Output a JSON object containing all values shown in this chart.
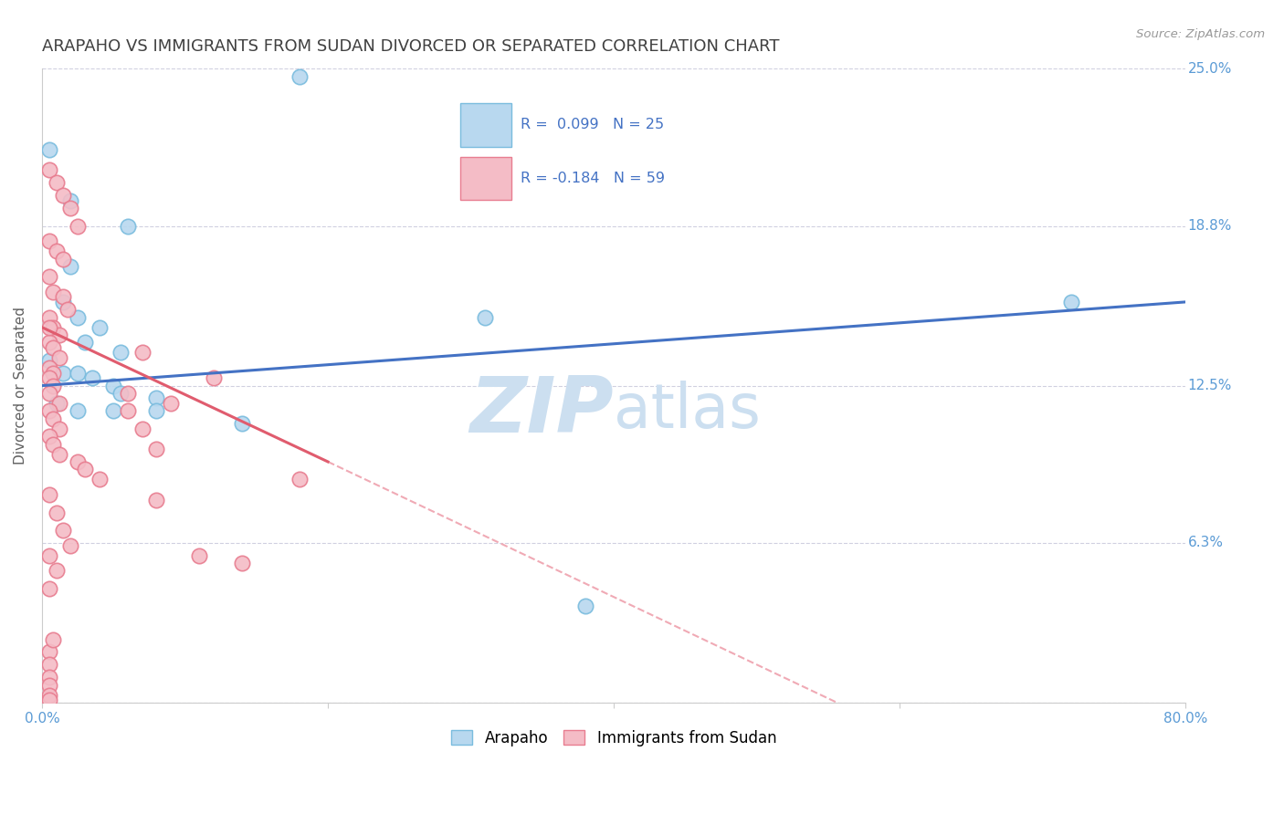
{
  "title": "ARAPAHO VS IMMIGRANTS FROM SUDAN DIVORCED OR SEPARATED CORRELATION CHART",
  "source_text": "Source: ZipAtlas.com",
  "ylabel": "Divorced or Separated",
  "xlim": [
    0.0,
    0.8
  ],
  "ylim": [
    0.0,
    0.25
  ],
  "xtick_positions": [
    0.0,
    0.2,
    0.4,
    0.6,
    0.8
  ],
  "xticklabels": [
    "0.0%",
    "",
    "",
    "",
    "80.0%"
  ],
  "ytick_right_labels": [
    "25.0%",
    "18.8%",
    "12.5%",
    "6.3%"
  ],
  "ytick_right_values": [
    0.25,
    0.188,
    0.125,
    0.063
  ],
  "watermark_zip": "ZIP",
  "watermark_atlas": "atlas",
  "blue_scatter": [
    [
      0.005,
      0.218
    ],
    [
      0.18,
      0.247
    ],
    [
      0.02,
      0.198
    ],
    [
      0.06,
      0.188
    ],
    [
      0.02,
      0.172
    ],
    [
      0.015,
      0.158
    ],
    [
      0.025,
      0.152
    ],
    [
      0.04,
      0.148
    ],
    [
      0.03,
      0.142
    ],
    [
      0.055,
      0.138
    ],
    [
      0.005,
      0.135
    ],
    [
      0.015,
      0.13
    ],
    [
      0.025,
      0.13
    ],
    [
      0.035,
      0.128
    ],
    [
      0.05,
      0.125
    ],
    [
      0.055,
      0.122
    ],
    [
      0.08,
      0.12
    ],
    [
      0.01,
      0.118
    ],
    [
      0.025,
      0.115
    ],
    [
      0.05,
      0.115
    ],
    [
      0.08,
      0.115
    ],
    [
      0.14,
      0.11
    ],
    [
      0.31,
      0.152
    ],
    [
      0.72,
      0.158
    ],
    [
      0.38,
      0.038
    ]
  ],
  "pink_scatter": [
    [
      0.005,
      0.21
    ],
    [
      0.01,
      0.205
    ],
    [
      0.015,
      0.2
    ],
    [
      0.02,
      0.195
    ],
    [
      0.025,
      0.188
    ],
    [
      0.005,
      0.182
    ],
    [
      0.01,
      0.178
    ],
    [
      0.015,
      0.175
    ],
    [
      0.005,
      0.168
    ],
    [
      0.008,
      0.162
    ],
    [
      0.015,
      0.16
    ],
    [
      0.018,
      0.155
    ],
    [
      0.005,
      0.152
    ],
    [
      0.008,
      0.148
    ],
    [
      0.012,
      0.145
    ],
    [
      0.005,
      0.142
    ],
    [
      0.008,
      0.14
    ],
    [
      0.012,
      0.136
    ],
    [
      0.005,
      0.132
    ],
    [
      0.008,
      0.13
    ],
    [
      0.005,
      0.128
    ],
    [
      0.008,
      0.125
    ],
    [
      0.005,
      0.122
    ],
    [
      0.012,
      0.118
    ],
    [
      0.005,
      0.115
    ],
    [
      0.008,
      0.112
    ],
    [
      0.012,
      0.108
    ],
    [
      0.005,
      0.105
    ],
    [
      0.008,
      0.102
    ],
    [
      0.012,
      0.098
    ],
    [
      0.025,
      0.095
    ],
    [
      0.03,
      0.092
    ],
    [
      0.04,
      0.088
    ],
    [
      0.005,
      0.082
    ],
    [
      0.01,
      0.075
    ],
    [
      0.015,
      0.068
    ],
    [
      0.02,
      0.062
    ],
    [
      0.005,
      0.058
    ],
    [
      0.01,
      0.052
    ],
    [
      0.005,
      0.045
    ],
    [
      0.14,
      0.055
    ],
    [
      0.11,
      0.058
    ],
    [
      0.08,
      0.08
    ],
    [
      0.18,
      0.088
    ],
    [
      0.06,
      0.115
    ],
    [
      0.08,
      0.1
    ],
    [
      0.12,
      0.128
    ],
    [
      0.09,
      0.118
    ],
    [
      0.07,
      0.138
    ],
    [
      0.06,
      0.122
    ],
    [
      0.07,
      0.108
    ],
    [
      0.005,
      0.02
    ],
    [
      0.008,
      0.025
    ],
    [
      0.005,
      0.015
    ],
    [
      0.005,
      0.01
    ],
    [
      0.005,
      0.007
    ],
    [
      0.005,
      0.003
    ],
    [
      0.005,
      0.001
    ],
    [
      0.005,
      0.148
    ]
  ],
  "blue_line": [
    [
      0.0,
      0.125
    ],
    [
      0.8,
      0.158
    ]
  ],
  "pink_line_solid": [
    [
      0.0,
      0.148
    ],
    [
      0.2,
      0.095
    ]
  ],
  "pink_line_dash": [
    [
      0.2,
      0.095
    ],
    [
      0.8,
      -0.065
    ]
  ],
  "blue_color": "#7abcde",
  "blue_fill": "#b8d8ef",
  "pink_color": "#e87d90",
  "pink_fill": "#f4bcc6",
  "trend_blue": "#4472c4",
  "trend_pink": "#e05c6e",
  "trend_pink_dash": "#f0aab5",
  "background_color": "#ffffff",
  "grid_color": "#d0d0e0",
  "title_color": "#404040",
  "title_fontsize": 13,
  "axis_label_color": "#606060",
  "right_label_color": "#5b9bd5"
}
